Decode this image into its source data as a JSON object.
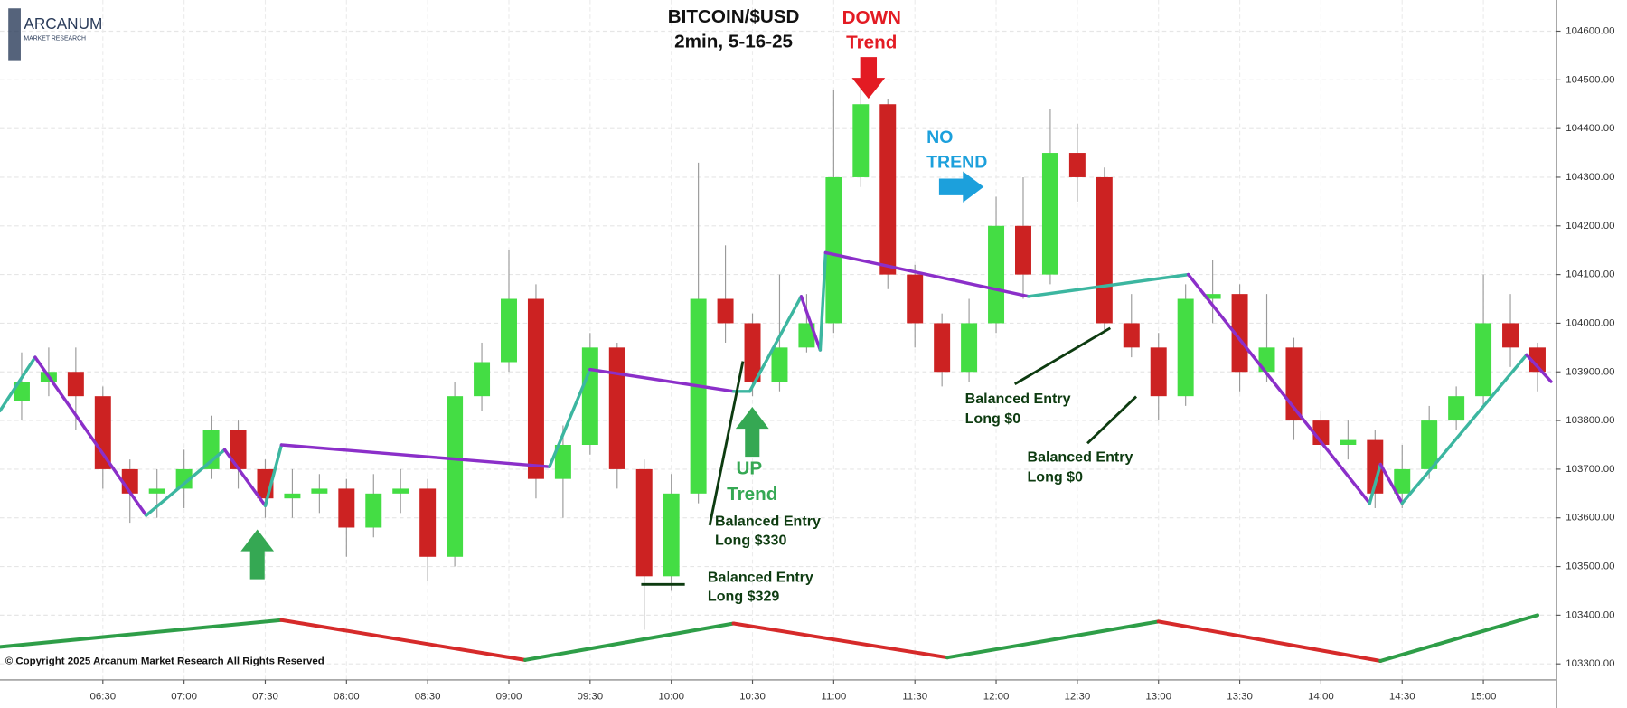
{
  "chart_data": {
    "type": "candlestick",
    "title": "BITCOIN/$USD",
    "subtitle": "2min, 5-16-25",
    "logo": {
      "name": "ARCANUM",
      "tagline": "MARKET RESEARCH"
    },
    "copyright": "© Copyright 2025 Arcanum Market Research All Rights Reserved",
    "up_color": "#44dd44",
    "down_color": "#cc2222",
    "wick_color": "#9a9a9a",
    "grid": true,
    "xlim": [
      352,
      927
    ],
    "ylim": [
      103267,
      104664
    ],
    "xticks": [
      {
        "value": 390,
        "label": "06:30"
      },
      {
        "value": 420,
        "label": "07:00"
      },
      {
        "value": 450,
        "label": "07:30"
      },
      {
        "value": 480,
        "label": "08:00"
      },
      {
        "value": 510,
        "label": "08:30"
      },
      {
        "value": 540,
        "label": "09:00"
      },
      {
        "value": 570,
        "label": "09:30"
      },
      {
        "value": 600,
        "label": "10:00"
      },
      {
        "value": 630,
        "label": "10:30"
      },
      {
        "value": 660,
        "label": "11:00"
      },
      {
        "value": 690,
        "label": "11:30"
      },
      {
        "value": 720,
        "label": "12:00"
      },
      {
        "value": 750,
        "label": "12:30"
      },
      {
        "value": 780,
        "label": "13:00"
      },
      {
        "value": 810,
        "label": "13:30"
      },
      {
        "value": 840,
        "label": "14:00"
      },
      {
        "value": 870,
        "label": "14:30"
      },
      {
        "value": 900,
        "label": "15:00"
      }
    ],
    "yticks": [
      {
        "value": 103300,
        "label": "103300.00"
      },
      {
        "value": 103400,
        "label": "103400.00"
      },
      {
        "value": 103500,
        "label": "103500.00"
      },
      {
        "value": 103600,
        "label": "103600.00"
      },
      {
        "value": 103700,
        "label": "103700.00"
      },
      {
        "value": 103800,
        "label": "103800.00"
      },
      {
        "value": 103900,
        "label": "103900.00"
      },
      {
        "value": 104000,
        "label": "104000.00"
      },
      {
        "value": 104100,
        "label": "104100.00"
      },
      {
        "value": 104200,
        "label": "104200.00"
      },
      {
        "value": 104300,
        "label": "104300.00"
      },
      {
        "value": 104400,
        "label": "104400.00"
      },
      {
        "value": 104500,
        "label": "104500.00"
      },
      {
        "value": 104600,
        "label": "104600.00"
      }
    ],
    "x": [
      360,
      370,
      380,
      390,
      400,
      410,
      420,
      430,
      440,
      450,
      460,
      470,
      480,
      490,
      500,
      510,
      520,
      530,
      540,
      550,
      560,
      570,
      580,
      590,
      600,
      610,
      620,
      630,
      640,
      650,
      660,
      670,
      680,
      690,
      700,
      710,
      720,
      730,
      740,
      750,
      760,
      770,
      780,
      790,
      800,
      810,
      820,
      830,
      840,
      850,
      860,
      870,
      880,
      890,
      900,
      910,
      920
    ],
    "open": [
      103840,
      103880,
      103900,
      103850,
      103700,
      103650,
      103660,
      103700,
      103780,
      103700,
      103640,
      103650,
      103660,
      103580,
      103650,
      103660,
      103520,
      103850,
      103920,
      104050,
      103680,
      103750,
      103950,
      103700,
      103480,
      103650,
      104050,
      104000,
      103880,
      103950,
      104000,
      104300,
      104450,
      104100,
      104000,
      103900,
      104000,
      104200,
      104100,
      104350,
      104300,
      104000,
      103950,
      103850,
      104050,
      104060,
      103900,
      103950,
      103800,
      103750,
      103760,
      103650,
      103700,
      103800,
      103850,
      104000,
      103950
    ],
    "high": [
      103940,
      103950,
      103950,
      103870,
      103720,
      103700,
      103740,
      103810,
      103800,
      103720,
      103700,
      103690,
      103680,
      103690,
      103700,
      103680,
      103880,
      103960,
      104150,
      104080,
      103790,
      103980,
      103960,
      103720,
      103690,
      104330,
      104160,
      104020,
      104100,
      104060,
      104480,
      104500,
      104460,
      104120,
      104020,
      104050,
      104260,
      104300,
      104440,
      104410,
      104320,
      104060,
      103980,
      104080,
      104130,
      104080,
      104060,
      103970,
      103820,
      103800,
      103780,
      103750,
      103830,
      103870,
      104100,
      104060,
      103960
    ],
    "low": [
      103800,
      103850,
      103780,
      103660,
      103590,
      103600,
      103620,
      103680,
      103660,
      103600,
      103600,
      103610,
      103520,
      103560,
      103610,
      103470,
      103500,
      103820,
      103900,
      103640,
      103600,
      103730,
      103660,
      103370,
      103450,
      103630,
      103960,
      103850,
      103860,
      103940,
      103980,
      104280,
      104070,
      103950,
      103870,
      103880,
      103980,
      104050,
      104080,
      104250,
      103980,
      103930,
      103800,
      103830,
      104000,
      103860,
      103880,
      103760,
      103700,
      103720,
      103620,
      103620,
      103680,
      103780,
      103830,
      103910,
      103860
    ],
    "close": [
      103880,
      103900,
      103850,
      103700,
      103650,
      103660,
      103700,
      103780,
      103700,
      103640,
      103650,
      103660,
      103580,
      103650,
      103660,
      103520,
      103850,
      103920,
      104050,
      103680,
      103750,
      103950,
      103700,
      103480,
      103650,
      104050,
      104000,
      103880,
      103950,
      104000,
      104300,
      104450,
      104100,
      104000,
      103900,
      104000,
      104200,
      104100,
      104350,
      104300,
      104000,
      103950,
      103850,
      104050,
      104060,
      103900,
      103950,
      103800,
      103750,
      103760,
      103650,
      103700,
      103800,
      103850,
      104000,
      103950,
      103900
    ],
    "zigzag": {
      "up_color": "#3cb6a0",
      "down_color": "#8b2fc9",
      "x": [
        352,
        365,
        406,
        435,
        450,
        456,
        555,
        570,
        623,
        629,
        648,
        655,
        657,
        732,
        791,
        858,
        862,
        870,
        916,
        925
      ],
      "values": [
        103820,
        103930,
        103605,
        103740,
        103625,
        103750,
        103705,
        103905,
        103860,
        103860,
        104055,
        103945,
        104145,
        104055,
        104100,
        103630,
        103710,
        103630,
        103935,
        103880
      ]
    },
    "trend_line": {
      "up_color": "#2e9e48",
      "down_color": "#d62a2a",
      "x": [
        352,
        456,
        546,
        623,
        702,
        780,
        862,
        920
      ],
      "values": [
        103335,
        103390,
        103308,
        103383,
        103313,
        103387,
        103306,
        103400
      ]
    },
    "annotations": [
      {
        "text": "DOWN",
        "color": "#e31b23"
      },
      {
        "text": "Trend",
        "color": "#e31b23"
      },
      {
        "text": "NO",
        "color": "#1ca0dc"
      },
      {
        "text": "TREND",
        "color": "#1ca0dc"
      },
      {
        "text": "UP",
        "color": "#35a853"
      },
      {
        "text": "Trend",
        "color": "#35a853"
      },
      {
        "text": "Balanced Entry",
        "color": "#0d3b10"
      },
      {
        "text": "Long $330",
        "color": "#0d3b10"
      },
      {
        "text": "Balanced Entry",
        "color": "#0d3b10"
      },
      {
        "text": "Long $329",
        "color": "#0d3b10"
      },
      {
        "text": "Balanced Entry",
        "color": "#0d3b10"
      },
      {
        "text": "Long $0",
        "color": "#0d3b10"
      },
      {
        "text": "Balanced Entry",
        "color": "#0d3b10"
      },
      {
        "text": "Long $0",
        "color": "#0d3b10"
      }
    ]
  }
}
